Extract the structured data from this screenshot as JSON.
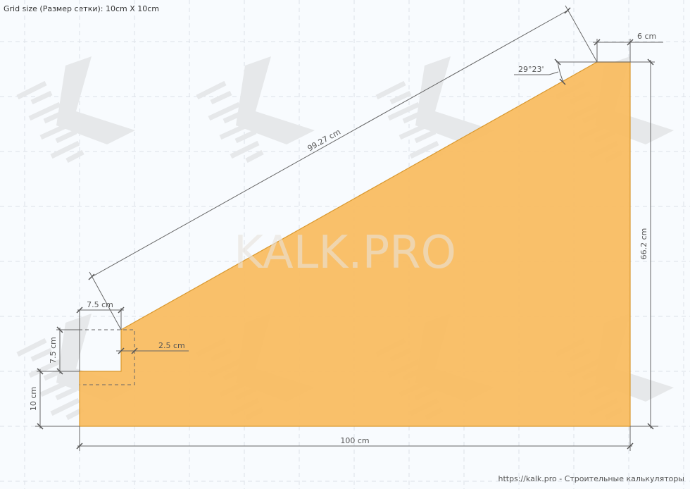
{
  "header": {
    "grid_size": "Grid size (Размер сетки): 10cm X 10cm"
  },
  "watermark": "KALK.PRO",
  "footer": "https://kalk.pro - Строительные калькуляторы",
  "dimensions": {
    "hypotenuse": "99.27 cm",
    "angle": "29°23'",
    "top_width": "6 cm",
    "height": "66.2 cm",
    "bottom_width": "100 cm",
    "notch_width": "7.5 cm",
    "notch_height": "7.5 cm",
    "offset": "2.5 cm",
    "base_height": "10 cm"
  },
  "colors": {
    "fill": "#f9bb5f",
    "stroke": "#d9982e"
  }
}
